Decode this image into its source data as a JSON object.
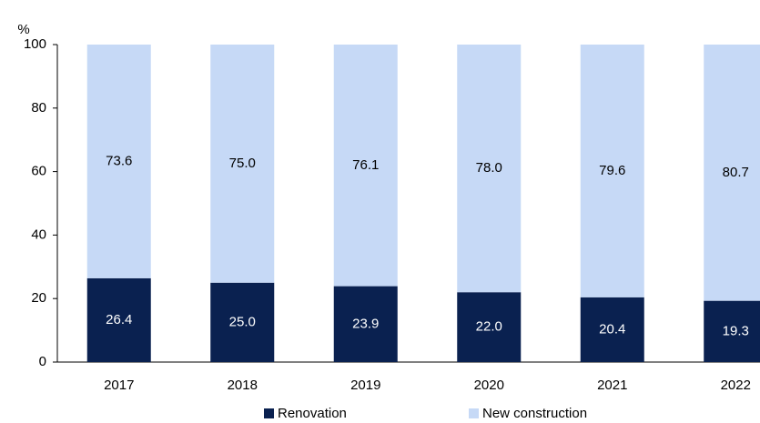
{
  "chart_data": {
    "type": "stacked_bar",
    "y_label": "%",
    "categories": [
      "2017",
      "2018",
      "2019",
      "2020",
      "2021",
      "2022"
    ],
    "series": [
      {
        "name": "Renovation",
        "color": "#0a2150",
        "label_color": "#ffffff",
        "values": [
          26.4,
          25.0,
          23.9,
          22.0,
          20.4,
          19.3
        ],
        "value_labels": [
          "26.4",
          "25.0",
          "23.9",
          "22.0",
          "20.4",
          "19.3"
        ]
      },
      {
        "name": "New construction",
        "color": "#c6d9f6",
        "label_color": "#000000",
        "values": [
          73.6,
          75.0,
          76.1,
          78.0,
          79.6,
          80.7
        ],
        "value_labels": [
          "73.6",
          "75.0",
          "76.1",
          "78.0",
          "79.6",
          "80.7"
        ]
      }
    ],
    "ylim": [
      0,
      100
    ],
    "yticks": [
      0,
      20,
      40,
      60,
      80,
      100
    ],
    "grid": false
  }
}
